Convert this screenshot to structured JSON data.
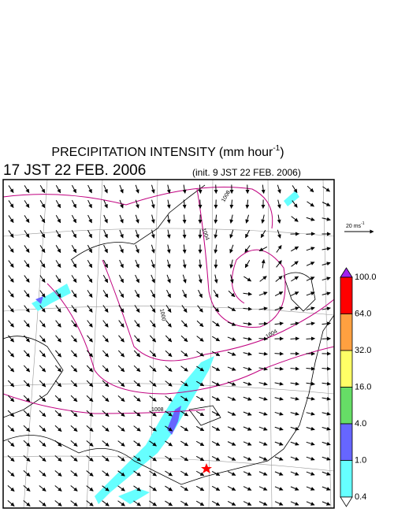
{
  "header": {
    "title": "PRECIPITATION INTENSITY (mm hour",
    "title_exp": "-1",
    "title_end": ")",
    "valid_time": "17 JST 22 FEB. 2006",
    "init_time": "(init. 9 JST 22 FEB. 2006)"
  },
  "vector_legend": {
    "label": "20 ms",
    "exp": "-1"
  },
  "colorbar": {
    "labels": [
      "100.0",
      "64.0",
      "32.0",
      "16.0",
      "4.0",
      "1.0",
      "0.4"
    ],
    "colors": [
      "#a020f0",
      "#ff0000",
      "#ffa040",
      "#ffff66",
      "#66dd66",
      "#6666ff",
      "#66ffff",
      "#ffffff"
    ]
  },
  "contour_labels": [
    "1008",
    "1004",
    "1000",
    "1004",
    "1008"
  ]
}
